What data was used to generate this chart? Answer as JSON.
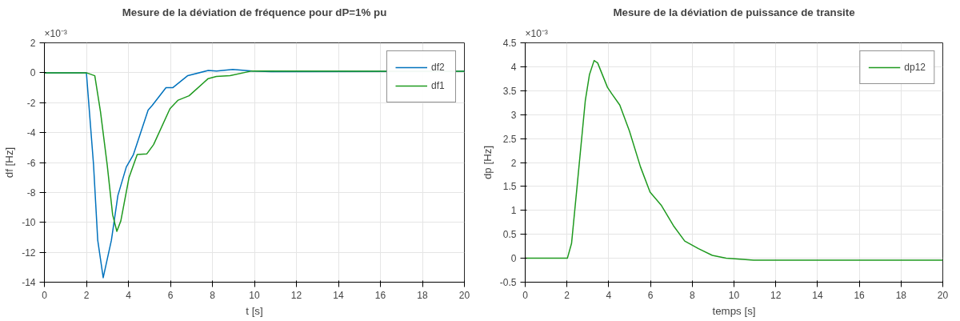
{
  "chart_data": [
    {
      "type": "line",
      "title": "Mesure de la déviation de fréquence pour dP=1% pu",
      "xlabel": "t [s]",
      "ylabel": "df [Hz]",
      "annotations": [
        "×10⁻³"
      ],
      "xlim": [
        0,
        20
      ],
      "ylim": [
        -14,
        2
      ],
      "xticks": [
        0,
        2,
        4,
        6,
        8,
        10,
        12,
        14,
        16,
        18,
        20
      ],
      "yticks": [
        -14,
        -12,
        -10,
        -8,
        -6,
        -4,
        -2,
        0,
        2
      ],
      "grid": true,
      "legend": "top right",
      "series": [
        {
          "name": "df2",
          "color": "#0072bd",
          "x": [
            0,
            2,
            2.34,
            2.54,
            2.8,
            3.19,
            3.5,
            3.9,
            4.23,
            4.94,
            5.14,
            5.79,
            6.11,
            6.83,
            7.8,
            8.2,
            8.97,
            9.9,
            10.8,
            20
          ],
          "values": [
            0,
            0,
            -6.15,
            -11.2,
            -13.7,
            -11.2,
            -8.2,
            -6.3,
            -5.5,
            -2.5,
            -2.17,
            -1.0,
            -1.0,
            -0.19,
            0.15,
            0.12,
            0.22,
            0.12,
            0.07,
            0.1
          ]
        },
        {
          "name": "df1",
          "color": "#1f9a1f",
          "x": [
            0,
            2,
            2.4,
            2.67,
            2.99,
            3.25,
            3.45,
            3.64,
            4.03,
            4.42,
            4.88,
            5.2,
            5.98,
            6.37,
            6.89,
            7.8,
            8.19,
            8.84,
            9.88,
            20
          ],
          "values": [
            0,
            0,
            -0.2,
            -2.6,
            -6.15,
            -9.5,
            -10.6,
            -9.9,
            -7.0,
            -5.47,
            -5.42,
            -4.8,
            -2.4,
            -1.83,
            -1.54,
            -0.39,
            -0.25,
            -0.19,
            0.12,
            0.1
          ]
        }
      ]
    },
    {
      "type": "line",
      "title": "Mesure de la déviation de puissance de transite",
      "xlabel": "temps [s]",
      "ylabel": "dp [Hz]",
      "annotations": [
        "×10⁻³"
      ],
      "xlim": [
        0,
        20
      ],
      "ylim": [
        -0.5,
        4.5
      ],
      "xticks": [
        0,
        2,
        4,
        6,
        8,
        10,
        12,
        14,
        16,
        18,
        20
      ],
      "yticks": [
        -0.5,
        0,
        0.5,
        1,
        1.5,
        2,
        2.5,
        3,
        3.5,
        4,
        4.5
      ],
      "grid": true,
      "legend": "top right",
      "series": [
        {
          "name": "dp12",
          "color": "#1f9a1f",
          "x": [
            0,
            2.02,
            2.22,
            2.48,
            2.88,
            3.08,
            3.3,
            3.47,
            3.94,
            4.14,
            4.53,
            4.99,
            5.52,
            5.98,
            6.51,
            7.1,
            7.64,
            8.3,
            8.96,
            9.62,
            10.94,
            20
          ],
          "values": [
            0,
            0,
            0.31,
            1.48,
            3.3,
            3.84,
            4.13,
            4.08,
            3.57,
            3.44,
            3.2,
            2.66,
            1.91,
            1.38,
            1.11,
            0.68,
            0.36,
            0.2,
            0.06,
            0,
            -0.04,
            -0.04
          ]
        }
      ]
    }
  ]
}
